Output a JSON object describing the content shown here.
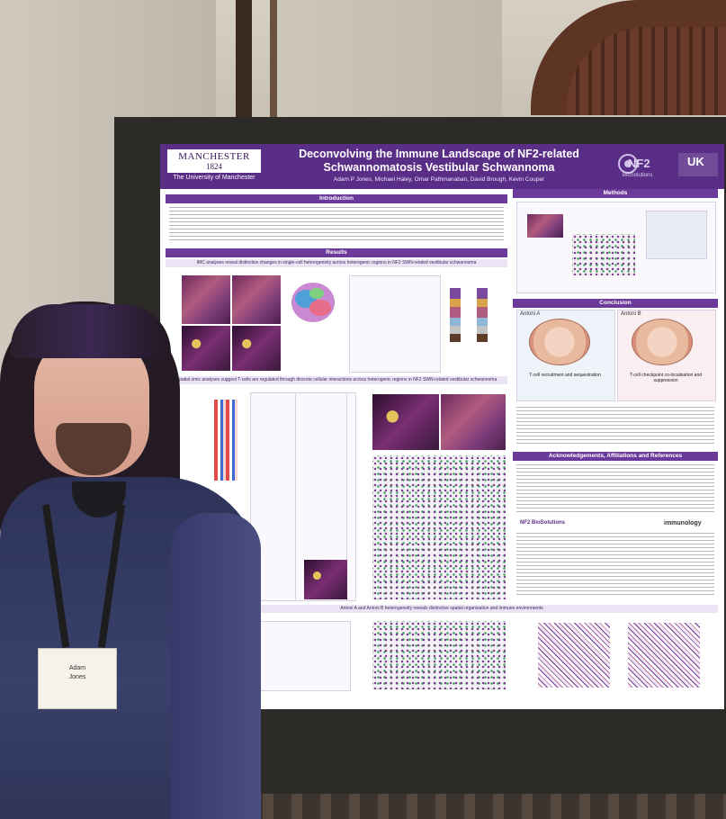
{
  "poster": {
    "university_name": "MANCHESTER",
    "university_year": "1824",
    "university_full": "The University of Manchester",
    "title_line1": "Deconvolving the Immune Landscape of NF2-related",
    "title_line2": "Schwannomatosis Vestibular Schwannoma",
    "authors": "Adam P Jones, Michael Haley, Omar Pathmanaban, David Brough, Kevin Couper",
    "partner_logo": "NF2",
    "partner_sub": "BioSolutions",
    "partner_logo2": "UK",
    "sections": {
      "introduction": "Introduction",
      "methods": "Methods",
      "results": "Results",
      "conclusion": "Conclusion",
      "acknowledgements": "Acknowledgements, Affiliations and References"
    },
    "results_sub1": "IMC analyses reveal distinctive changes in single-cell heterogeneity across heterogenic regions in NF2 SWN-related vestibular schwannoma",
    "results_sub2": "Spatial omic analyses suggest T-cells are regulated through discrete cellular interactions across heterogenic regions in NF2 SWN-related vestibular schwannoma",
    "results_sub3": "Antoni A and Antoni B heterogeneity reveals distinctive spatial organisation and immune environments",
    "conclusion_a": "Antoni A",
    "conclusion_b": "Antoni B",
    "conclusion_a_cap": "T-cell recruitment and sequestration",
    "conclusion_b_cap": "T-cell checkpoint co-localisation and suppression",
    "ack_logo1": "NF2 BioSolutions",
    "ack_logo2": "immunology"
  },
  "badge": {
    "name_first": "Adam",
    "name_last": "Jones"
  }
}
